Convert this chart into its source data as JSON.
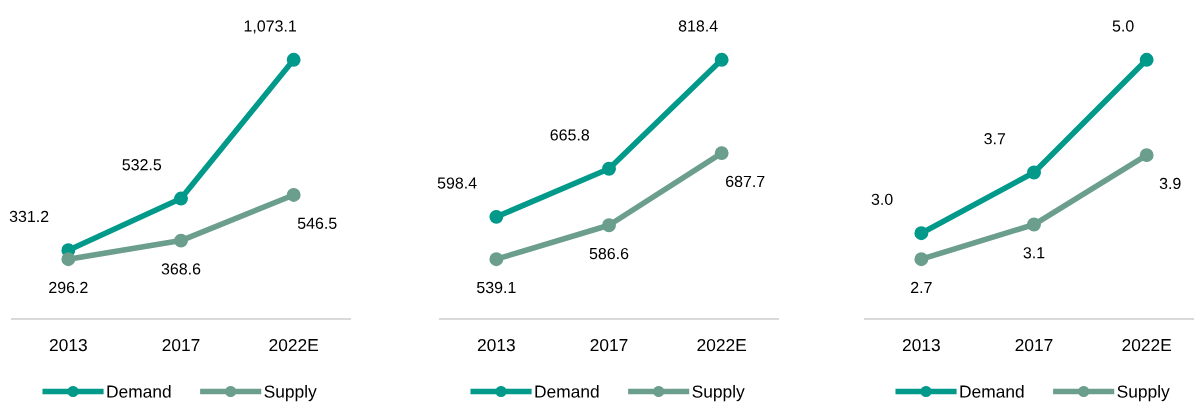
{
  "chart_data": [
    {
      "type": "line",
      "categories": [
        "2013",
        "2017",
        "2022E"
      ],
      "tick_labels": "x",
      "legend": "bottom",
      "marker": "circle",
      "line_style": "solid",
      "grid": false,
      "series": [
        {
          "name": "Demand",
          "color": "#00998a",
          "values": [
            331.2,
            532.5,
            1073.1
          ],
          "value_labels": [
            "331.2",
            "532.5",
            "1,073.1"
          ]
        },
        {
          "name": "Supply",
          "color": "#6b9e8c",
          "values": [
            296.2,
            368.6,
            546.5
          ],
          "value_labels": [
            "296.2",
            "368.6",
            "546.5"
          ]
        }
      ]
    },
    {
      "type": "line",
      "categories": [
        "2013",
        "2017",
        "2022E"
      ],
      "tick_labels": "x",
      "legend": "bottom",
      "marker": "circle",
      "line_style": "solid",
      "grid": false,
      "series": [
        {
          "name": "Demand",
          "color": "#00998a",
          "values": [
            598.4,
            665.8,
            818.4
          ],
          "value_labels": [
            "598.4",
            "665.8",
            "818.4"
          ]
        },
        {
          "name": "Supply",
          "color": "#6b9e8c",
          "values": [
            539.1,
            586.6,
            687.7
          ],
          "value_labels": [
            "539.1",
            "586.6",
            "687.7"
          ]
        }
      ]
    },
    {
      "type": "line",
      "categories": [
        "2013",
        "2017",
        "2022E"
      ],
      "tick_labels": "x",
      "legend": "bottom",
      "marker": "circle",
      "line_style": "solid",
      "grid": false,
      "series": [
        {
          "name": "Demand",
          "color": "#00998a",
          "values": [
            3.0,
            3.7,
            5.0
          ],
          "value_labels": [
            "3.0",
            "3.7",
            "5.0"
          ]
        },
        {
          "name": "Supply",
          "color": "#6b9e8c",
          "values": [
            2.7,
            3.1,
            3.9
          ],
          "value_labels": [
            "2.7",
            "3.1",
            "3.9"
          ]
        }
      ]
    }
  ]
}
